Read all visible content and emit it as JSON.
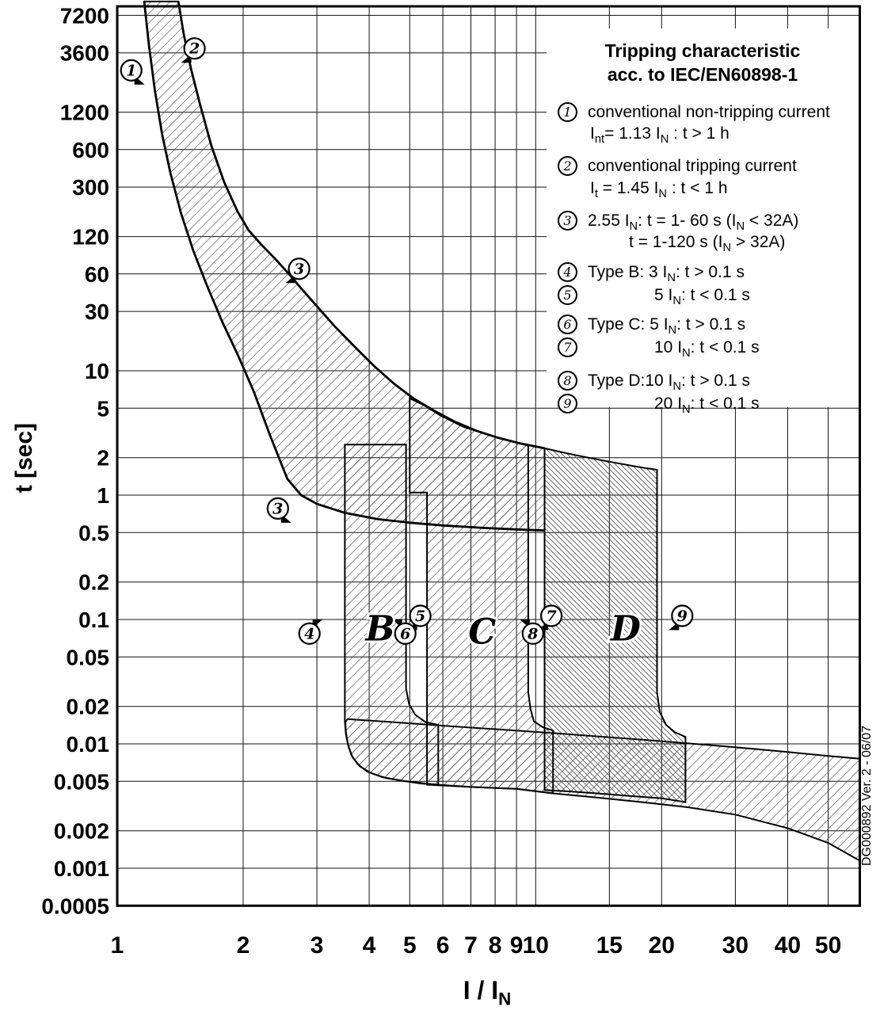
{
  "chart_data": {
    "type": "area",
    "title": "Tripping characteristic acc. to IEC/EN60898-1",
    "xlabel": "I / I_N_",
    "ylabel": "t [sec]",
    "x_scale": "log",
    "y_scale": "log",
    "grid": true,
    "x_range": [
      1,
      59.5
    ],
    "y_range": [
      0.0005,
      9300
    ],
    "x_ticks": [
      1,
      2,
      3,
      4,
      5,
      6,
      7,
      8,
      9,
      10,
      15,
      20,
      30,
      40,
      50
    ],
    "y_ticks": [
      7200,
      3600,
      1200,
      600,
      300,
      120,
      60,
      30,
      10,
      5,
      2,
      1,
      0.5,
      0.2,
      0.1,
      0.05,
      0.02,
      0.01,
      0.005,
      0.002,
      0.001,
      0.0005
    ],
    "series": {
      "thermal_upper": [
        [
          1.4,
          9300
        ],
        [
          1.44,
          5200
        ],
        [
          1.5,
          2700
        ],
        [
          1.58,
          1350
        ],
        [
          1.68,
          640
        ],
        [
          1.8,
          330
        ],
        [
          1.94,
          190
        ],
        [
          2.06,
          135
        ],
        [
          2.2,
          105
        ],
        [
          2.38,
          80
        ],
        [
          2.55,
          62
        ],
        [
          2.75,
          46
        ],
        [
          3.0,
          33
        ],
        [
          3.3,
          23
        ],
        [
          3.7,
          15.5
        ],
        [
          4.1,
          11
        ],
        [
          4.6,
          7.8
        ],
        [
          5.1,
          6.0
        ],
        [
          5.7,
          4.8
        ],
        [
          6.4,
          3.9
        ],
        [
          7.2,
          3.3
        ],
        [
          8.1,
          2.9
        ],
        [
          9.2,
          2.6
        ],
        [
          10.5,
          2.38
        ]
      ],
      "thermal_lower": [
        [
          1.16,
          9300
        ],
        [
          1.19,
          4200
        ],
        [
          1.23,
          1800
        ],
        [
          1.28,
          800
        ],
        [
          1.34,
          390
        ],
        [
          1.42,
          185
        ],
        [
          1.52,
          92
        ],
        [
          1.64,
          48
        ],
        [
          1.78,
          25
        ],
        [
          1.94,
          13.5
        ],
        [
          2.12,
          6.8
        ],
        [
          2.32,
          3.0
        ],
        [
          2.55,
          1.35
        ],
        [
          2.75,
          1.0
        ],
        [
          3.0,
          0.85
        ],
        [
          3.5,
          0.72
        ],
        [
          4.2,
          0.64
        ],
        [
          5.0,
          0.6
        ],
        [
          6.0,
          0.57
        ],
        [
          7.5,
          0.545
        ],
        [
          9.0,
          0.53
        ],
        [
          10.5,
          0.52
        ]
      ],
      "band_b": [
        [
          3.5,
          2.55
        ],
        [
          4.9,
          2.55
        ],
        [
          4.9,
          0.028
        ],
        [
          4.98,
          0.021
        ],
        [
          5.15,
          0.0172
        ],
        [
          5.45,
          0.015
        ],
        [
          5.85,
          0.0142
        ],
        [
          5.85,
          0.0047
        ],
        [
          5.3,
          0.0048
        ],
        [
          4.9,
          0.005
        ],
        [
          4.4,
          0.0053
        ],
        [
          4.05,
          0.0058
        ],
        [
          3.8,
          0.0066
        ],
        [
          3.65,
          0.0078
        ],
        [
          3.57,
          0.0095
        ],
        [
          3.52,
          0.012
        ],
        [
          3.5,
          0.015
        ]
      ],
      "band_c": [
        [
          5.0,
          6.0
        ],
        [
          5.0,
          1.05
        ],
        [
          5.5,
          1.05
        ],
        [
          5.5,
          0.0047
        ],
        [
          7.0,
          0.0045
        ],
        [
          9.0,
          0.00435
        ],
        [
          11.0,
          0.004
        ],
        [
          11.0,
          0.0128
        ],
        [
          10.4,
          0.0136
        ],
        [
          9.9,
          0.0152
        ],
        [
          9.72,
          0.019
        ],
        [
          9.6,
          0.026
        ],
        [
          9.6,
          2.5
        ],
        [
          8.6,
          2.75
        ],
        [
          7.6,
          3.1
        ],
        [
          6.7,
          3.55
        ],
        [
          5.9,
          4.4
        ],
        [
          5.4,
          5.3
        ]
      ],
      "band_d": [
        [
          10.5,
          2.38
        ],
        [
          11.5,
          2.22
        ],
        [
          12.5,
          2.09
        ],
        [
          14.0,
          1.94
        ],
        [
          15.5,
          1.82
        ],
        [
          17.0,
          1.72
        ],
        [
          18.5,
          1.64
        ],
        [
          19.5,
          1.6
        ],
        [
          19.5,
          0.026
        ],
        [
          19.8,
          0.018
        ],
        [
          20.5,
          0.0142
        ],
        [
          21.5,
          0.0124
        ],
        [
          22.8,
          0.0114
        ],
        [
          22.8,
          0.0034
        ],
        [
          20.0,
          0.00365
        ],
        [
          17.0,
          0.0038
        ],
        [
          14.0,
          0.004
        ],
        [
          12.0,
          0.00415
        ],
        [
          10.5,
          0.00425
        ]
      ],
      "bottom_strip": [
        [
          3.55,
          0.0158
        ],
        [
          4.5,
          0.015
        ],
        [
          5.5,
          0.0143
        ],
        [
          7.0,
          0.0135
        ],
        [
          9.0,
          0.0128
        ],
        [
          11.0,
          0.0122
        ],
        [
          14.0,
          0.0115
        ],
        [
          18.0,
          0.0108
        ],
        [
          23.0,
          0.0101
        ],
        [
          30.0,
          0.0094
        ],
        [
          40.0,
          0.0086
        ],
        [
          50.0,
          0.008
        ],
        [
          59.5,
          0.0076
        ],
        [
          59.5,
          0.00115
        ],
        [
          50.0,
          0.0016
        ],
        [
          40.0,
          0.0021
        ],
        [
          30.0,
          0.0027
        ],
        [
          23.0,
          0.0031
        ],
        [
          18.0,
          0.0034
        ],
        [
          14.0,
          0.0037
        ],
        [
          11.0,
          0.004
        ],
        [
          9.0,
          0.00435
        ],
        [
          7.0,
          0.0045
        ],
        [
          5.8,
          0.0047
        ],
        [
          4.9,
          0.005
        ],
        [
          4.3,
          0.0054
        ],
        [
          3.95,
          0.006
        ],
        [
          3.75,
          0.0069
        ],
        [
          3.63,
          0.0081
        ],
        [
          3.56,
          0.0099
        ],
        [
          3.52,
          0.0124
        ],
        [
          3.51,
          0.015
        ]
      ]
    },
    "markers": [
      {
        "n": "1",
        "x": 1.08,
        "t": 2600,
        "pointer": "br"
      },
      {
        "n": "2",
        "x": 1.53,
        "t": 3900,
        "pointer": "bl"
      },
      {
        "n": "3",
        "x": 2.72,
        "t": 66,
        "pointer": "bl"
      },
      {
        "n": "3",
        "x": 2.42,
        "t": 0.78,
        "pointer": "br"
      },
      {
        "n": "4",
        "x": 2.88,
        "t": 0.077,
        "pointer": "tr"
      },
      {
        "n": "5",
        "x": 5.3,
        "t": 0.107,
        "pointer": "bl"
      },
      {
        "n": "6",
        "x": 4.88,
        "t": 0.077,
        "pointer": "tl"
      },
      {
        "n": "7",
        "x": 10.9,
        "t": 0.107,
        "pointer": "bl"
      },
      {
        "n": "8",
        "x": 9.85,
        "t": 0.077,
        "pointer": "tl"
      },
      {
        "n": "9",
        "x": 22.4,
        "t": 0.107,
        "pointer": "bl"
      }
    ],
    "band_labels": [
      {
        "text": "B",
        "x": 4.25,
        "t": 0.068
      },
      {
        "text": "C",
        "x": 7.45,
        "t": 0.064
      },
      {
        "text": "D",
        "x": 16.4,
        "t": 0.068
      }
    ]
  },
  "legend": {
    "title_line1": "Tripping characteristic",
    "title_line2": "acc. to IEC/EN60898-1",
    "items": [
      {
        "n": "1",
        "lines": [
          "conventional non-tripping current",
          "I_nt_= 1.13 I_N_ : t > 1 h"
        ]
      },
      {
        "n": "2",
        "lines": [
          "conventional tripping current",
          "I_t_ = 1.45 I_N_ : t < 1 h"
        ]
      },
      {
        "n": "3",
        "lines": [
          "2.55 I_N_: t = 1- 60 s (I_N_ < 32A)",
          "t = 1-120 s (I_N_ > 32A)"
        ]
      },
      {
        "n": "4",
        "lines": [
          "Type B: 3 I_N_: t > 0.1 s"
        ]
      },
      {
        "n": "5",
        "lines": [
          "5 I_N_: t < 0.1 s"
        ]
      },
      {
        "n": "6",
        "lines": [
          "Type C: 5 I_N_: t > 0.1 s"
        ]
      },
      {
        "n": "7",
        "lines": [
          "10 I_N_: t < 0.1 s"
        ]
      },
      {
        "n": "8",
        "lines": [
          "Type D:10 I_N_: t > 0.1 s"
        ]
      },
      {
        "n": "9",
        "lines": [
          "20 I_N_: t < 0.1 s"
        ]
      }
    ]
  },
  "axis": {
    "x_label_rich": "I / I_N_",
    "y_label": "t [sec]"
  },
  "watermark": "DG000892 Ver. 2 - 06/07",
  "colors": {
    "ink": "#000000",
    "hatch_light": "#4d4d4d",
    "hatch_dark": "#3a3a3a",
    "background": "#ffffff"
  }
}
